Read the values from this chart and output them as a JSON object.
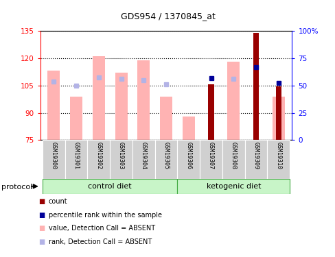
{
  "title": "GDS954 / 1370845_at",
  "samples": [
    "GSM19300",
    "GSM19301",
    "GSM19302",
    "GSM19303",
    "GSM19304",
    "GSM19305",
    "GSM19306",
    "GSM19307",
    "GSM19308",
    "GSM19309",
    "GSM19310"
  ],
  "value_absent": [
    113.0,
    99.0,
    121.0,
    112.0,
    119.0,
    99.0,
    88.0,
    null,
    118.0,
    null,
    99.0
  ],
  "rank_absent": [
    107.0,
    105.0,
    109.5,
    108.5,
    108.0,
    105.5,
    null,
    null,
    108.5,
    null,
    null
  ],
  "count_present": [
    null,
    null,
    null,
    null,
    null,
    null,
    null,
    105.5,
    null,
    134.0,
    104.5
  ],
  "rank_present": [
    null,
    null,
    null,
    null,
    null,
    null,
    null,
    109.0,
    null,
    115.0,
    106.5
  ],
  "ylim_left": [
    75,
    135
  ],
  "ylim_right": [
    0,
    100
  ],
  "yticks_left": [
    75,
    90,
    105,
    120,
    135
  ],
  "yticks_right": [
    0,
    25,
    50,
    75,
    100
  ],
  "ytick_labels_left": [
    "75",
    "90",
    "105",
    "120",
    "135"
  ],
  "ytick_labels_right": [
    "0",
    "25",
    "50",
    "75",
    "100%"
  ],
  "color_value_absent": "#ffb3b3",
  "color_rank_absent": "#b3b3e6",
  "color_count": "#990000",
  "color_rank": "#000099",
  "group_labels": [
    "control diet",
    "ketogenic diet"
  ],
  "group_ranges": [
    [
      0,
      5
    ],
    [
      6,
      10
    ]
  ],
  "group_color_light": "#c8f5c8",
  "group_color_dark": "#66cc66",
  "sample_bg": "#d0d0d0",
  "protocol_label": "protocol",
  "legend_items": [
    {
      "label": "count",
      "color": "#990000"
    },
    {
      "label": "percentile rank within the sample",
      "color": "#000099"
    },
    {
      "label": "value, Detection Call = ABSENT",
      "color": "#ffb3b3"
    },
    {
      "label": "rank, Detection Call = ABSENT",
      "color": "#b3b3e6"
    }
  ]
}
